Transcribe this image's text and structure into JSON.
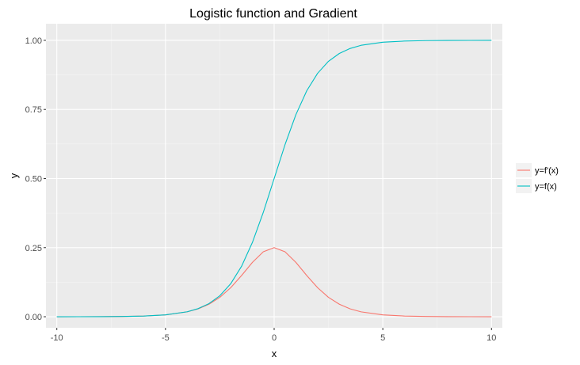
{
  "chart_data": {
    "type": "line",
    "title": "Logistic function and Gradient",
    "xlabel": "x",
    "ylabel": "y",
    "xlim": [
      -10.5,
      10.5
    ],
    "ylim": [
      -0.04,
      1.06
    ],
    "x_ticks": [
      -10,
      -5,
      0,
      5,
      10
    ],
    "x_tick_labels": [
      "-10",
      "-5",
      "0",
      "5",
      "10"
    ],
    "y_ticks": [
      0,
      0.25,
      0.5,
      0.75,
      1
    ],
    "y_tick_labels": [
      "0.00",
      "0.25",
      "0.50",
      "0.75",
      "1.00"
    ],
    "grid": true,
    "legend_position": "right",
    "background": "#ebebeb",
    "x": [
      -10,
      -9,
      -8,
      -7,
      -6,
      -5,
      -4,
      -3.5,
      -3,
      -2.5,
      -2,
      -1.5,
      -1,
      -0.5,
      0,
      0.5,
      1,
      1.5,
      2,
      2.5,
      3,
      3.5,
      4,
      5,
      6,
      7,
      8,
      9,
      10
    ],
    "series": [
      {
        "name": "y=f'(x)",
        "color": "#f8766d",
        "values": [
          5e-05,
          0.00012,
          0.00034,
          0.00091,
          0.00247,
          0.00665,
          0.01766,
          0.02844,
          0.04518,
          0.0701,
          0.10499,
          0.14914,
          0.19661,
          0.235,
          0.25,
          0.235,
          0.19661,
          0.14914,
          0.10499,
          0.0701,
          0.04518,
          0.02844,
          0.01766,
          0.00665,
          0.00247,
          0.00091,
          0.00034,
          0.00012,
          5e-05
        ]
      },
      {
        "name": "y=f(x)",
        "color": "#00bfc4",
        "values": [
          5e-05,
          0.00012,
          0.00034,
          0.00091,
          0.00247,
          0.00669,
          0.01799,
          0.02931,
          0.04743,
          0.07586,
          0.1192,
          0.18243,
          0.26894,
          0.37754,
          0.5,
          0.62246,
          0.73106,
          0.81757,
          0.8808,
          0.92414,
          0.95257,
          0.97069,
          0.98201,
          0.99331,
          0.99753,
          0.99909,
          0.99966,
          0.99988,
          0.99995
        ]
      }
    ]
  }
}
